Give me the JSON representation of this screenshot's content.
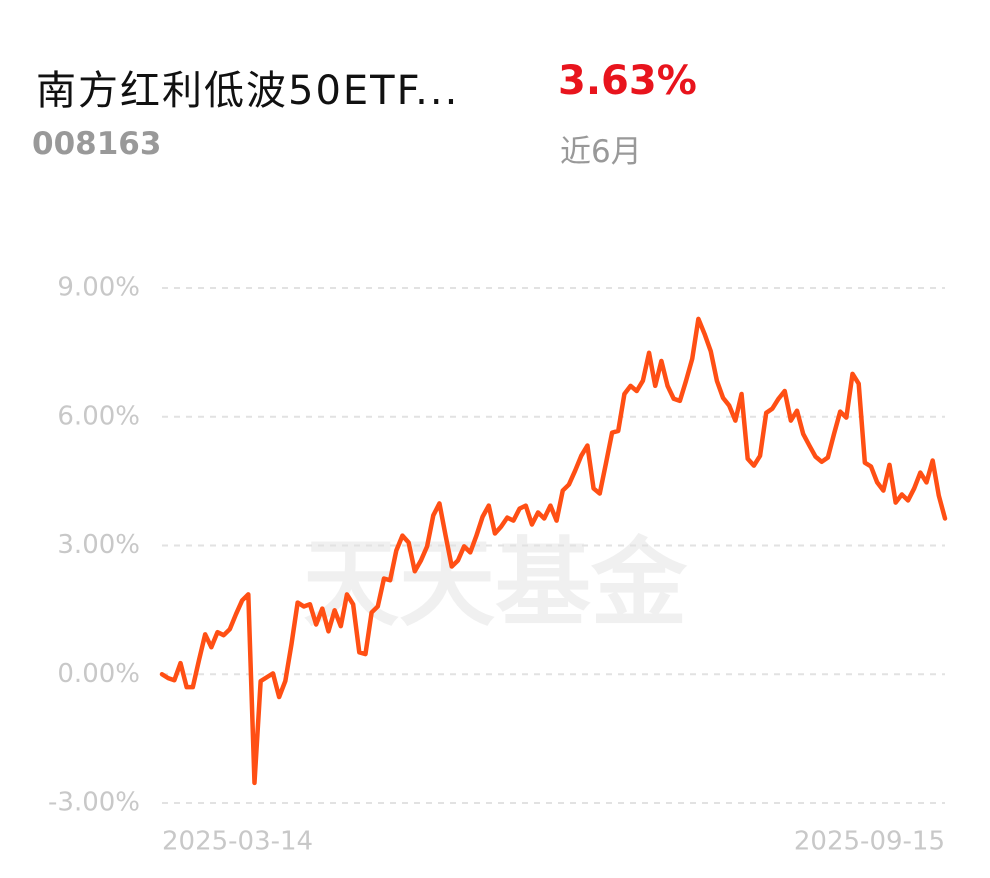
{
  "header": {
    "title": "南方红利低波50ETF...",
    "code": "008163",
    "return": "3.63%",
    "period": "近6月",
    "watermark": "天天基金"
  },
  "chart_data": {
    "type": "line",
    "categories": [
      "2025-03-14",
      null,
      null,
      null,
      null,
      null,
      null,
      null,
      null,
      null,
      null,
      null,
      null,
      null,
      null,
      null,
      null,
      null,
      null,
      null,
      null,
      null,
      null,
      null,
      null,
      null,
      null,
      null,
      null,
      null,
      null,
      null,
      null,
      null,
      null,
      null,
      null,
      null,
      null,
      null,
      null,
      null,
      null,
      null,
      null,
      null,
      null,
      null,
      null,
      null,
      null,
      null,
      null,
      null,
      null,
      null,
      null,
      null,
      null,
      null,
      null,
      null,
      null,
      null,
      null,
      null,
      null,
      null,
      null,
      null,
      null,
      null,
      null,
      null,
      null,
      null,
      null,
      null,
      null,
      null,
      null,
      null,
      null,
      null,
      null,
      null,
      null,
      null,
      null,
      null,
      null,
      null,
      null,
      null,
      null,
      null,
      null,
      null,
      null,
      null,
      null,
      null,
      null,
      null,
      null,
      null,
      null,
      null,
      null,
      null,
      null,
      null,
      null,
      null,
      null,
      null,
      null,
      null,
      null,
      null,
      null,
      null,
      null,
      null,
      null,
      null,
      null,
      "2025-09-15"
    ],
    "values": [
      0,
      -0.09,
      -0.14,
      0.26,
      -0.3,
      -0.3,
      0.33,
      0.93,
      0.63,
      0.98,
      0.91,
      1.05,
      1.4,
      1.72,
      1.86,
      -2.53,
      -0.16,
      -0.07,
      0.02,
      -0.53,
      -0.16,
      0.7,
      1.67,
      1.58,
      1.63,
      1.16,
      1.53,
      1.0,
      1.49,
      1.12,
      1.86,
      1.63,
      0.51,
      0.47,
      1.44,
      1.58,
      2.23,
      2.19,
      2.88,
      3.23,
      3.07,
      2.4,
      2.65,
      2.98,
      3.7,
      3.98,
      3.23,
      2.51,
      2.65,
      2.98,
      2.84,
      3.23,
      3.67,
      3.93,
      3.28,
      3.44,
      3.65,
      3.58,
      3.86,
      3.93,
      3.49,
      3.77,
      3.63,
      3.93,
      3.58,
      4.28,
      4.42,
      4.74,
      5.09,
      5.33,
      4.33,
      4.21,
      4.91,
      5.63,
      5.67,
      6.53,
      6.72,
      6.6,
      6.84,
      7.49,
      6.72,
      7.3,
      6.72,
      6.42,
      6.37,
      6.84,
      7.35,
      8.28,
      7.93,
      7.53,
      6.84,
      6.44,
      6.26,
      5.91,
      6.53,
      5.02,
      4.86,
      5.09,
      6.09,
      6.19,
      6.42,
      6.6,
      5.91,
      6.14,
      5.6,
      5.33,
      5.07,
      4.95,
      5.05,
      5.6,
      6.12,
      5.98,
      7.0,
      6.77,
      4.93,
      4.84,
      4.47,
      4.28,
      4.88,
      4.0,
      4.19,
      4.05,
      4.33,
      4.7,
      4.47,
      4.98,
      4.16,
      3.63
    ],
    "color": "#ff4f14",
    "ylim": [
      -3,
      9
    ],
    "yticks": [
      {
        "value": 9,
        "label": "9.00%"
      },
      {
        "value": 6,
        "label": "6.00%"
      },
      {
        "value": 3,
        "label": "3.00%"
      },
      {
        "value": 0,
        "label": "0.00%"
      },
      {
        "value": -3,
        "label": "-3.00%"
      }
    ],
    "grid": true
  }
}
